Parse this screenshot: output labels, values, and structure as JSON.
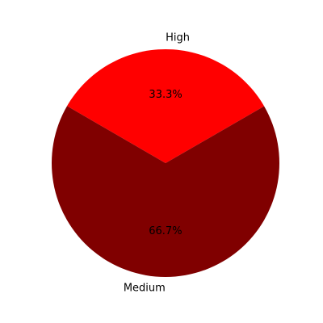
{
  "chart_data": {
    "type": "pie",
    "categories": [
      "High",
      "Medium"
    ],
    "values": [
      33.3,
      66.7
    ],
    "percent_labels": [
      "33.3%",
      "66.7%"
    ],
    "colors": [
      "#ff0000",
      "#800000"
    ],
    "title": "",
    "legend": "none"
  }
}
